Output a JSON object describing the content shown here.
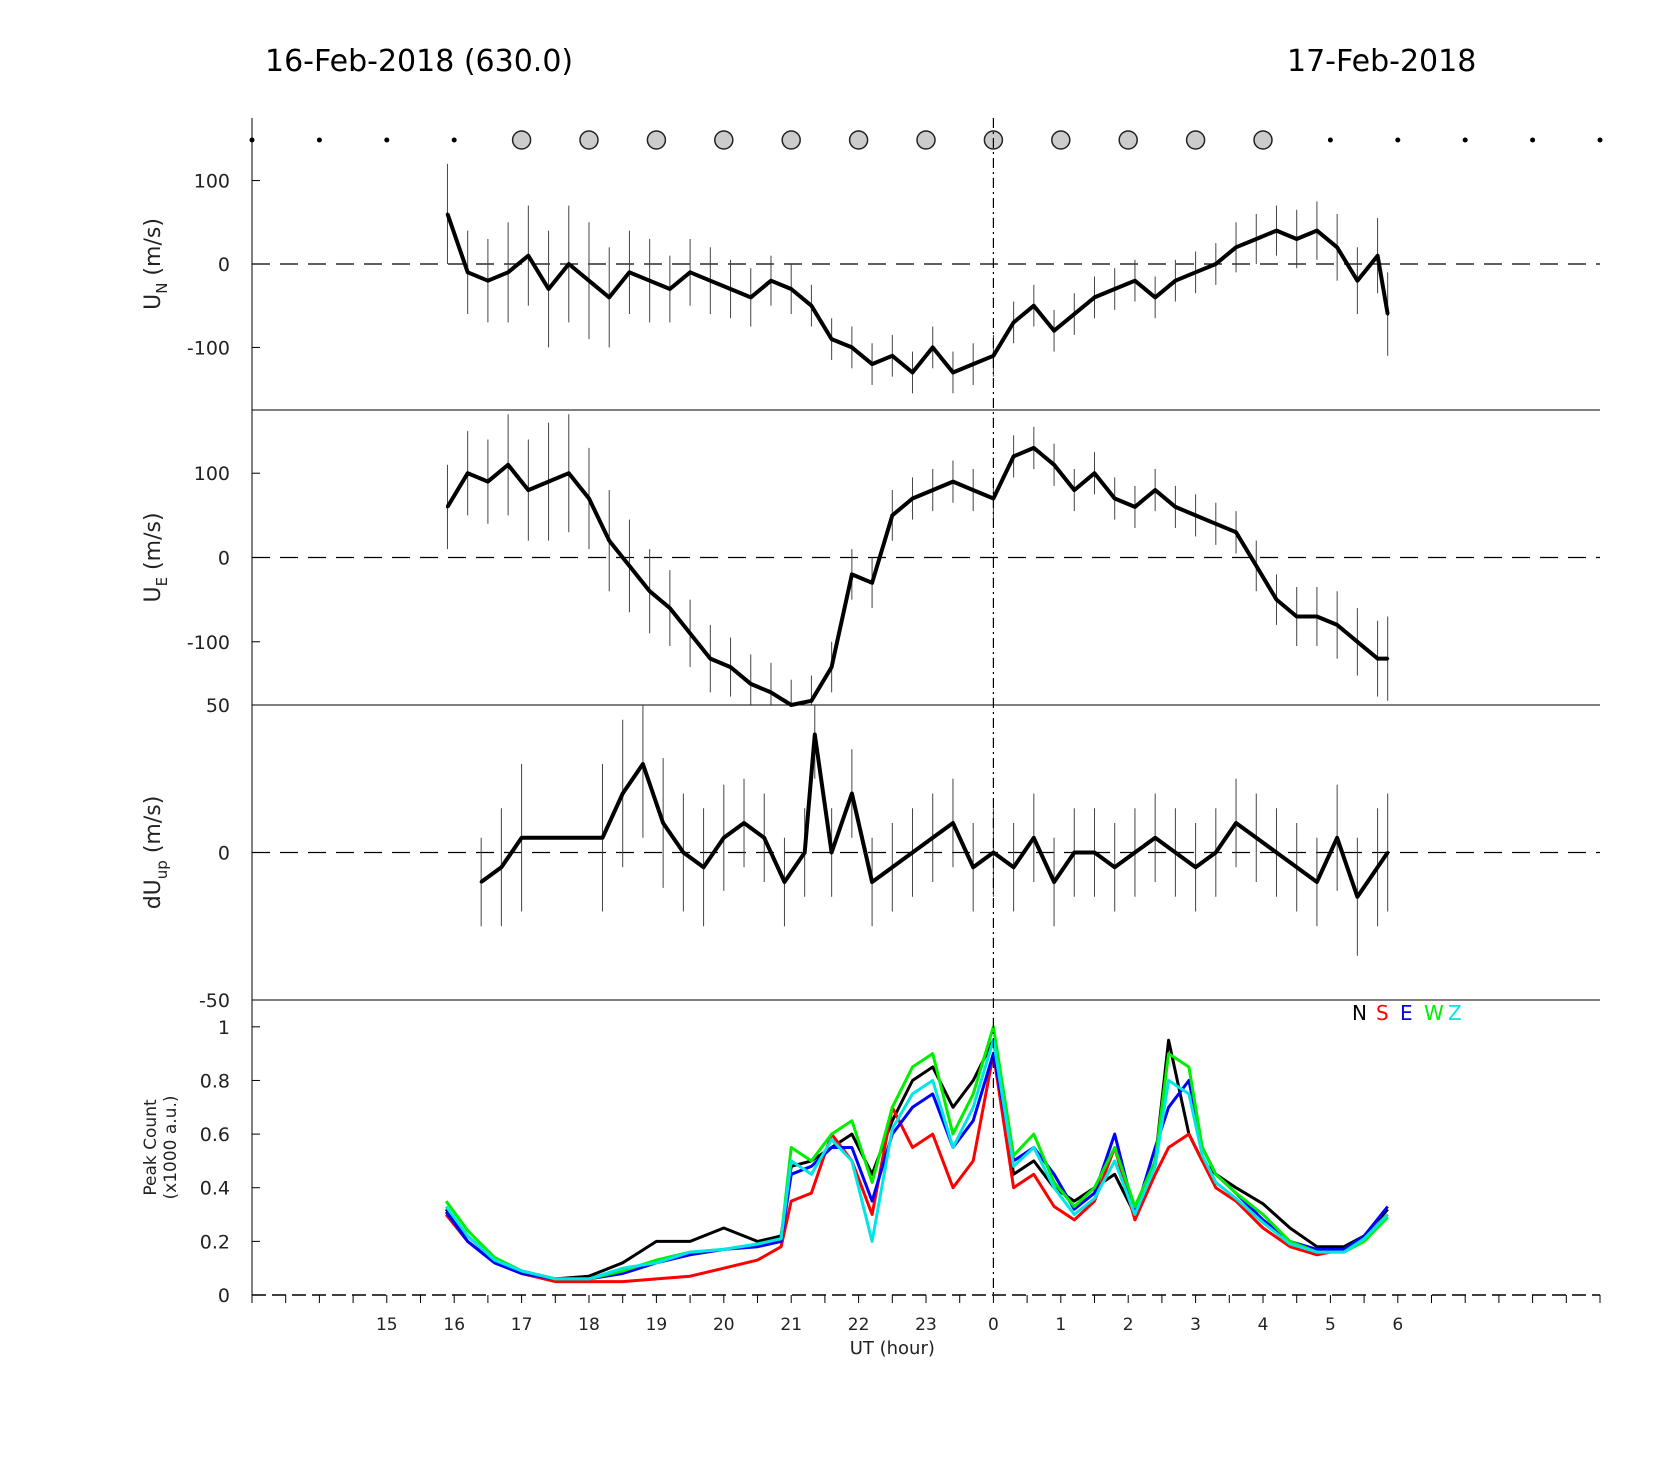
{
  "titles": {
    "left": "16-Feb-2018 (630.0)",
    "right": "17-Feb-2018"
  },
  "chart_data": [
    {
      "panel": "wind-north",
      "type": "line",
      "ylabel": "U_N (m/s)",
      "ylabel_main": "U",
      "ylabel_sub": "N",
      "ylabel_tail": " (m/s)",
      "ylim": [
        -175,
        175
      ],
      "yticks": [
        -100,
        0,
        100
      ],
      "ytick_labels": [
        "-100",
        "0",
        "100"
      ],
      "x_hours": [
        15.9,
        16.2,
        16.5,
        16.8,
        17.1,
        17.4,
        17.7,
        18.0,
        18.3,
        18.6,
        18.9,
        19.2,
        19.5,
        19.8,
        20.1,
        20.4,
        20.7,
        21.0,
        21.3,
        21.6,
        21.9,
        22.2,
        22.5,
        22.8,
        23.1,
        23.4,
        23.7,
        24.0,
        24.3,
        24.6,
        24.9,
        25.2,
        25.5,
        25.8,
        26.1,
        26.4,
        26.7,
        27.0,
        27.3,
        27.6,
        27.9,
        28.2,
        28.5,
        28.8,
        29.1,
        29.4,
        29.7,
        29.85
      ],
      "values": [
        60,
        -10,
        -20,
        -10,
        10,
        -30,
        0,
        -20,
        -40,
        -10,
        -20,
        -30,
        -10,
        -20,
        -30,
        -40,
        -20,
        -30,
        -50,
        -90,
        -100,
        -120,
        -110,
        -130,
        -100,
        -130,
        -120,
        -110,
        -70,
        -50,
        -80,
        -60,
        -40,
        -30,
        -20,
        -40,
        -20,
        -10,
        0,
        20,
        30,
        40,
        30,
        40,
        20,
        -20,
        10,
        -60
      ],
      "error_bar": [
        60,
        50,
        50,
        60,
        60,
        70,
        70,
        70,
        60,
        50,
        50,
        40,
        40,
        40,
        35,
        35,
        30,
        30,
        25,
        25,
        25,
        25,
        25,
        25,
        25,
        25,
        25,
        25,
        25,
        25,
        25,
        25,
        25,
        25,
        25,
        25,
        25,
        25,
        25,
        30,
        30,
        30,
        35,
        35,
        40,
        40,
        45,
        50
      ],
      "reference_line": 0
    },
    {
      "panel": "wind-east",
      "type": "line",
      "ylabel": "U_E (m/s)",
      "ylabel_main": "U",
      "ylabel_sub": "E",
      "ylabel_tail": " (m/s)",
      "ylim": [
        -175,
        175
      ],
      "yticks": [
        -100,
        0,
        100
      ],
      "ytick_labels": [
        "-100",
        "0",
        "100"
      ],
      "x_hours": [
        15.9,
        16.2,
        16.5,
        16.8,
        17.1,
        17.4,
        17.7,
        18.0,
        18.3,
        18.6,
        18.9,
        19.2,
        19.5,
        19.8,
        20.1,
        20.4,
        20.7,
        21.0,
        21.3,
        21.6,
        21.9,
        22.2,
        22.5,
        22.8,
        23.1,
        23.4,
        23.7,
        24.0,
        24.3,
        24.6,
        24.9,
        25.2,
        25.5,
        25.8,
        26.1,
        26.4,
        26.7,
        27.0,
        27.3,
        27.6,
        27.9,
        28.2,
        28.5,
        28.8,
        29.1,
        29.4,
        29.7,
        29.85
      ],
      "values": [
        60,
        100,
        90,
        110,
        80,
        90,
        100,
        70,
        20,
        -10,
        -40,
        -60,
        -90,
        -120,
        -130,
        -150,
        -160,
        -175,
        -170,
        -130,
        -20,
        -30,
        50,
        70,
        80,
        90,
        80,
        70,
        120,
        130,
        110,
        80,
        100,
        70,
        60,
        80,
        60,
        50,
        40,
        30,
        -10,
        -50,
        -70,
        -70,
        -80,
        -100,
        -120,
        -120
      ],
      "error_bar": [
        50,
        50,
        50,
        60,
        60,
        70,
        70,
        60,
        60,
        55,
        50,
        45,
        40,
        40,
        35,
        35,
        35,
        30,
        30,
        30,
        30,
        30,
        30,
        25,
        25,
        25,
        25,
        25,
        25,
        25,
        25,
        25,
        25,
        25,
        25,
        25,
        25,
        25,
        25,
        25,
        30,
        30,
        35,
        35,
        40,
        40,
        45,
        50
      ],
      "reference_line": 0
    },
    {
      "panel": "vertical-wind",
      "type": "line",
      "ylabel": "dU_up (m/s)",
      "ylabel_main": "dU",
      "ylabel_sub": "up",
      "ylabel_tail": " (m/s)",
      "ylim": [
        -50,
        50
      ],
      "yticks": [
        -50,
        0,
        50
      ],
      "ytick_labels": [
        "-50",
        "0",
        "50"
      ],
      "x_hours": [
        16.4,
        16.7,
        17.0,
        18.2,
        18.5,
        18.8,
        19.1,
        19.4,
        19.7,
        20.0,
        20.3,
        20.6,
        20.9,
        21.2,
        21.35,
        21.6,
        21.9,
        22.2,
        22.5,
        22.8,
        23.1,
        23.4,
        23.7,
        24.0,
        24.3,
        24.6,
        24.9,
        25.2,
        25.5,
        25.8,
        26.1,
        26.4,
        26.7,
        27.0,
        27.3,
        27.6,
        27.9,
        28.2,
        28.5,
        28.8,
        29.1,
        29.4,
        29.7,
        29.85
      ],
      "values": [
        -10,
        -5,
        5,
        5,
        20,
        30,
        10,
        0,
        -5,
        5,
        10,
        5,
        -10,
        0,
        40,
        0,
        20,
        -10,
        -5,
        0,
        5,
        10,
        -5,
        0,
        -5,
        5,
        -10,
        0,
        0,
        -5,
        0,
        5,
        0,
        -5,
        0,
        10,
        5,
        0,
        -5,
        -10,
        5,
        -15,
        -5,
        0
      ],
      "error_bar": [
        15,
        20,
        25,
        25,
        25,
        25,
        22,
        20,
        20,
        18,
        15,
        15,
        15,
        15,
        15,
        15,
        15,
        15,
        15,
        15,
        15,
        15,
        15,
        15,
        15,
        15,
        15,
        15,
        15,
        15,
        15,
        15,
        15,
        15,
        15,
        15,
        15,
        15,
        15,
        15,
        18,
        20,
        20,
        20
      ],
      "reference_line": 0
    },
    {
      "panel": "peak-count",
      "type": "line",
      "ylabel": "Peak Count (x1000 a.u.)",
      "ylabel_line1": "Peak Count",
      "ylabel_line2": "(x1000 a.u.)",
      "xlabel": "UT (hour)",
      "ylim": [
        0,
        1.1
      ],
      "yticks": [
        0,
        0.2,
        0.4,
        0.6,
        0.8,
        1
      ],
      "ytick_labels": [
        "0",
        "0.2",
        "0.4",
        "0.6",
        "0.8",
        "1"
      ],
      "x": [
        15.88,
        16.2,
        16.6,
        17.0,
        17.5,
        18.0,
        18.5,
        19.0,
        19.5,
        20.0,
        20.5,
        20.85,
        21.0,
        21.3,
        21.6,
        21.9,
        22.2,
        22.5,
        22.8,
        23.1,
        23.4,
        23.7,
        24.0,
        24.3,
        24.6,
        24.9,
        25.2,
        25.5,
        25.8,
        26.1,
        26.4,
        26.6,
        26.9,
        27.1,
        27.3,
        27.6,
        28.0,
        28.4,
        28.8,
        29.2,
        29.5,
        29.85
      ],
      "series": [
        {
          "name": "N",
          "color": "#000000",
          "values": [
            0.32,
            0.22,
            0.13,
            0.09,
            0.06,
            0.07,
            0.12,
            0.2,
            0.2,
            0.25,
            0.2,
            0.22,
            0.48,
            0.5,
            0.55,
            0.6,
            0.45,
            0.65,
            0.8,
            0.85,
            0.7,
            0.8,
            0.95,
            0.45,
            0.5,
            0.4,
            0.35,
            0.4,
            0.45,
            0.3,
            0.5,
            0.95,
            0.6,
            0.5,
            0.45,
            0.4,
            0.34,
            0.25,
            0.18,
            0.18,
            0.22,
            0.32
          ]
        },
        {
          "name": "S",
          "color": "#ff0000",
          "values": [
            0.3,
            0.2,
            0.12,
            0.08,
            0.05,
            0.05,
            0.05,
            0.06,
            0.07,
            0.1,
            0.13,
            0.18,
            0.35,
            0.38,
            0.6,
            0.5,
            0.3,
            0.7,
            0.55,
            0.6,
            0.4,
            0.5,
            0.9,
            0.4,
            0.45,
            0.33,
            0.28,
            0.35,
            0.55,
            0.28,
            0.45,
            0.55,
            0.6,
            0.5,
            0.4,
            0.35,
            0.25,
            0.18,
            0.15,
            0.17,
            0.22,
            0.3
          ]
        },
        {
          "name": "E",
          "color": "#0000ff",
          "values": [
            0.31,
            0.2,
            0.12,
            0.08,
            0.06,
            0.06,
            0.08,
            0.12,
            0.15,
            0.17,
            0.18,
            0.2,
            0.45,
            0.48,
            0.55,
            0.55,
            0.35,
            0.6,
            0.7,
            0.75,
            0.55,
            0.65,
            0.9,
            0.5,
            0.55,
            0.45,
            0.32,
            0.38,
            0.6,
            0.3,
            0.55,
            0.7,
            0.8,
            0.55,
            0.45,
            0.38,
            0.28,
            0.2,
            0.17,
            0.17,
            0.22,
            0.33
          ]
        },
        {
          "name": "W",
          "color": "#00ee00",
          "values": [
            0.35,
            0.24,
            0.14,
            0.09,
            0.06,
            0.06,
            0.09,
            0.13,
            0.16,
            0.17,
            0.19,
            0.21,
            0.55,
            0.5,
            0.6,
            0.65,
            0.42,
            0.7,
            0.85,
            0.9,
            0.6,
            0.75,
            1.0,
            0.52,
            0.6,
            0.42,
            0.33,
            0.4,
            0.55,
            0.33,
            0.5,
            0.9,
            0.85,
            0.55,
            0.45,
            0.38,
            0.3,
            0.2,
            0.16,
            0.16,
            0.2,
            0.29
          ]
        },
        {
          "name": "Z",
          "color": "#00e5e5",
          "values": [
            0.33,
            0.22,
            0.13,
            0.09,
            0.06,
            0.06,
            0.1,
            0.12,
            0.16,
            0.17,
            0.19,
            0.21,
            0.5,
            0.45,
            0.58,
            0.5,
            0.2,
            0.62,
            0.75,
            0.8,
            0.55,
            0.7,
            0.95,
            0.48,
            0.55,
            0.4,
            0.3,
            0.36,
            0.5,
            0.3,
            0.48,
            0.8,
            0.75,
            0.52,
            0.42,
            0.36,
            0.27,
            0.19,
            0.16,
            0.16,
            0.21,
            0.3
          ]
        }
      ],
      "legend": [
        "N",
        "S",
        "E",
        "W",
        "Z"
      ],
      "legend_position": "top-right"
    }
  ],
  "x_axis": {
    "xlim": [
      13,
      33
    ],
    "tick_hours": [
      15,
      16,
      17,
      18,
      19,
      20,
      21,
      22,
      23,
      24,
      25,
      26,
      27,
      28,
      29,
      30
    ],
    "tick_labels": [
      "15",
      "16",
      "17",
      "18",
      "19",
      "20",
      "21",
      "22",
      "23",
      "0",
      "1",
      "2",
      "3",
      "4",
      "5",
      "6"
    ],
    "midnight_line": 24,
    "label": "UT (hour)"
  },
  "markers": {
    "hours": [
      13,
      14,
      15,
      16,
      17,
      18,
      19,
      20,
      21,
      22,
      23,
      24,
      25,
      26,
      27,
      28,
      29,
      30,
      31,
      32,
      33
    ],
    "kinds": [
      "dot",
      "dot",
      "dot",
      "dot",
      "circle",
      "circle",
      "circle",
      "circle",
      "circle",
      "circle",
      "circle",
      "circle",
      "circle",
      "circle",
      "circle",
      "circle",
      "dot",
      "dot",
      "dot",
      "dot",
      "dot"
    ]
  }
}
